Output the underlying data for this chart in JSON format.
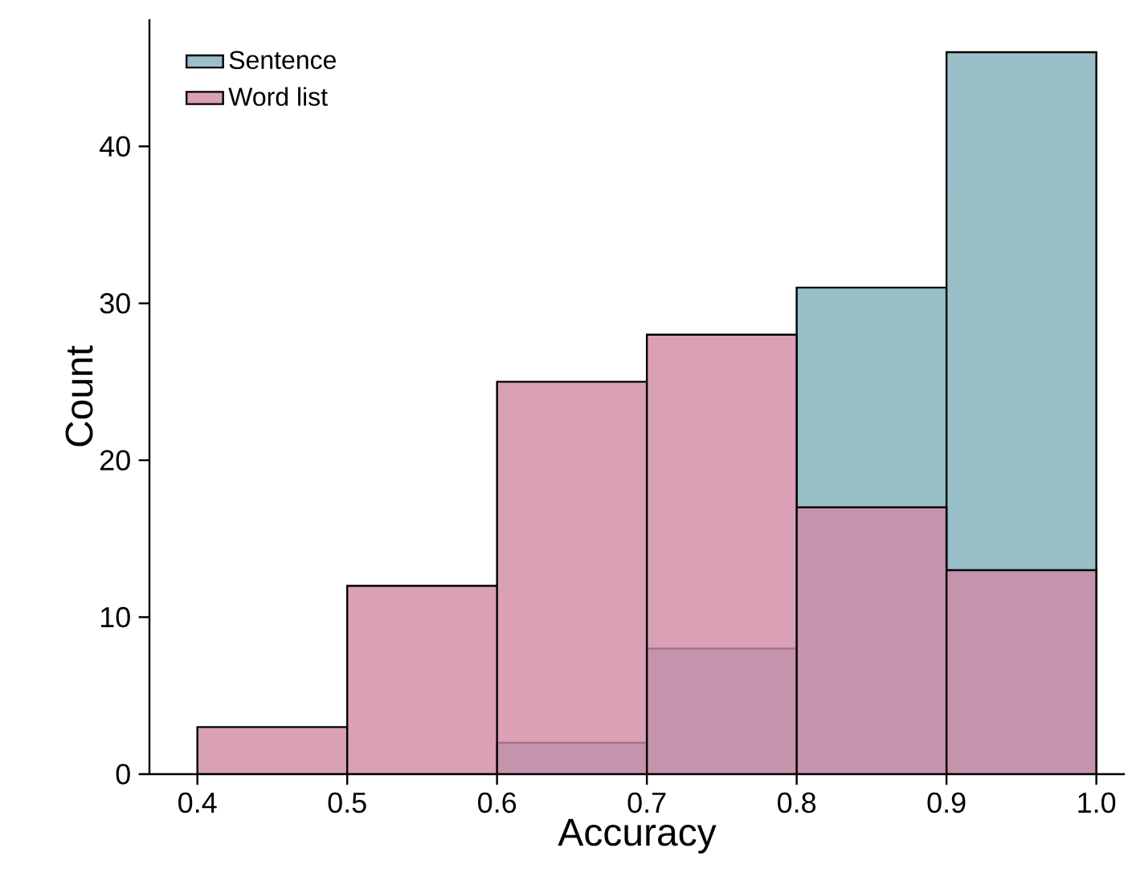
{
  "chart_data": {
    "type": "histogram",
    "xlabel": "Accuracy",
    "ylabel": "Count",
    "bins": [
      0.4,
      0.5,
      0.6,
      0.7,
      0.8,
      0.9,
      1.0
    ],
    "series": [
      {
        "name": "Sentence",
        "color": "#80afbc",
        "values": [
          0,
          0,
          2,
          8,
          31,
          46
        ]
      },
      {
        "name": "Word list",
        "color": "#d088a4",
        "values": [
          3,
          12,
          25,
          28,
          17,
          13
        ]
      }
    ],
    "xlim": [
      0.368,
      1.019
    ],
    "ylim": [
      0,
      48.1
    ],
    "xticks": [
      0.4,
      0.5,
      0.6,
      0.7,
      0.8,
      0.9,
      {
        "value": 1.0,
        "label": "1.0"
      }
    ],
    "yticks": [
      0,
      10,
      20,
      30,
      40
    ],
    "legend": "top left",
    "grid": false
  }
}
